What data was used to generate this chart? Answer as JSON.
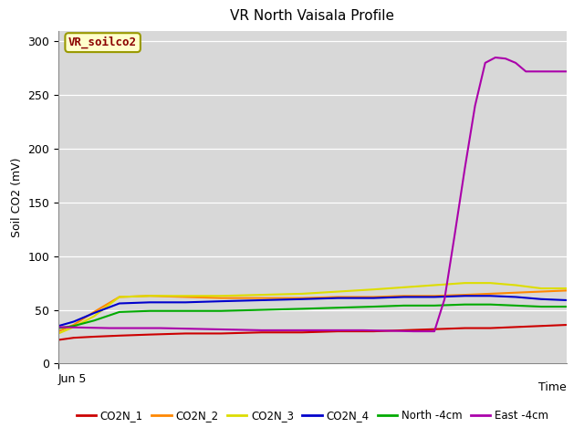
{
  "title": "VR North Vaisala Profile",
  "ylabel": "Soil CO2 (mV)",
  "xlabel": "Time",
  "annotation": "VR_soilco2",
  "ylim": [
    0,
    310
  ],
  "yticks": [
    0,
    50,
    100,
    150,
    200,
    250,
    300
  ],
  "xtick_labels": [
    "Jun 5"
  ],
  "plot_bg_color": "#d8d8d8",
  "fig_bg_color": "#ffffff",
  "series": {
    "CO2N_1": {
      "color": "#cc0000",
      "x": [
        0,
        0.03,
        0.07,
        0.12,
        0.18,
        0.25,
        0.32,
        0.4,
        0.48,
        0.55,
        0.62,
        0.68,
        0.74,
        0.8,
        0.85,
        0.9,
        0.95,
        1.0
      ],
      "y": [
        22,
        24,
        25,
        26,
        27,
        28,
        28,
        29,
        29,
        30,
        30,
        31,
        32,
        33,
        33,
        34,
        35,
        36
      ]
    },
    "CO2N_2": {
      "color": "#ff8800",
      "x": [
        0,
        0.03,
        0.07,
        0.12,
        0.18,
        0.25,
        0.32,
        0.4,
        0.48,
        0.55,
        0.62,
        0.68,
        0.74,
        0.8,
        0.85,
        0.9,
        0.95,
        1.0
      ],
      "y": [
        30,
        36,
        48,
        62,
        63,
        62,
        61,
        61,
        61,
        62,
        62,
        63,
        63,
        64,
        65,
        66,
        67,
        68
      ]
    },
    "CO2N_3": {
      "color": "#dddd00",
      "x": [
        0,
        0.03,
        0.07,
        0.12,
        0.18,
        0.25,
        0.32,
        0.4,
        0.48,
        0.55,
        0.62,
        0.68,
        0.74,
        0.8,
        0.85,
        0.9,
        0.95,
        1.0
      ],
      "y": [
        28,
        34,
        44,
        62,
        63,
        63,
        63,
        64,
        65,
        67,
        69,
        71,
        73,
        75,
        75,
        73,
        70,
        70
      ]
    },
    "CO2N_4": {
      "color": "#0000cc",
      "x": [
        0,
        0.03,
        0.07,
        0.12,
        0.18,
        0.25,
        0.32,
        0.4,
        0.48,
        0.55,
        0.62,
        0.68,
        0.74,
        0.8,
        0.85,
        0.9,
        0.95,
        1.0
      ],
      "y": [
        35,
        39,
        47,
        56,
        57,
        57,
        58,
        59,
        60,
        61,
        61,
        62,
        62,
        63,
        63,
        62,
        60,
        59
      ]
    },
    "North -4cm": {
      "color": "#00aa00",
      "x": [
        0,
        0.03,
        0.07,
        0.12,
        0.18,
        0.25,
        0.32,
        0.4,
        0.48,
        0.55,
        0.62,
        0.68,
        0.74,
        0.8,
        0.85,
        0.9,
        0.95,
        1.0
      ],
      "y": [
        33,
        35,
        40,
        48,
        49,
        49,
        49,
        50,
        51,
        52,
        53,
        54,
        54,
        55,
        55,
        54,
        53,
        53
      ]
    },
    "East -4cm": {
      "color": "#aa00aa",
      "x": [
        0,
        0.1,
        0.2,
        0.3,
        0.4,
        0.5,
        0.6,
        0.7,
        0.74,
        0.76,
        0.78,
        0.8,
        0.82,
        0.84,
        0.86,
        0.88,
        0.9,
        0.92,
        0.95,
        1.0
      ],
      "y": [
        34,
        33,
        33,
        32,
        31,
        31,
        31,
        30,
        30,
        60,
        120,
        182,
        240,
        280,
        285,
        284,
        280,
        272,
        272,
        272
      ]
    }
  },
  "series_order": [
    "CO2N_1",
    "CO2N_2",
    "CO2N_3",
    "CO2N_4",
    "North -4cm",
    "East -4cm"
  ]
}
